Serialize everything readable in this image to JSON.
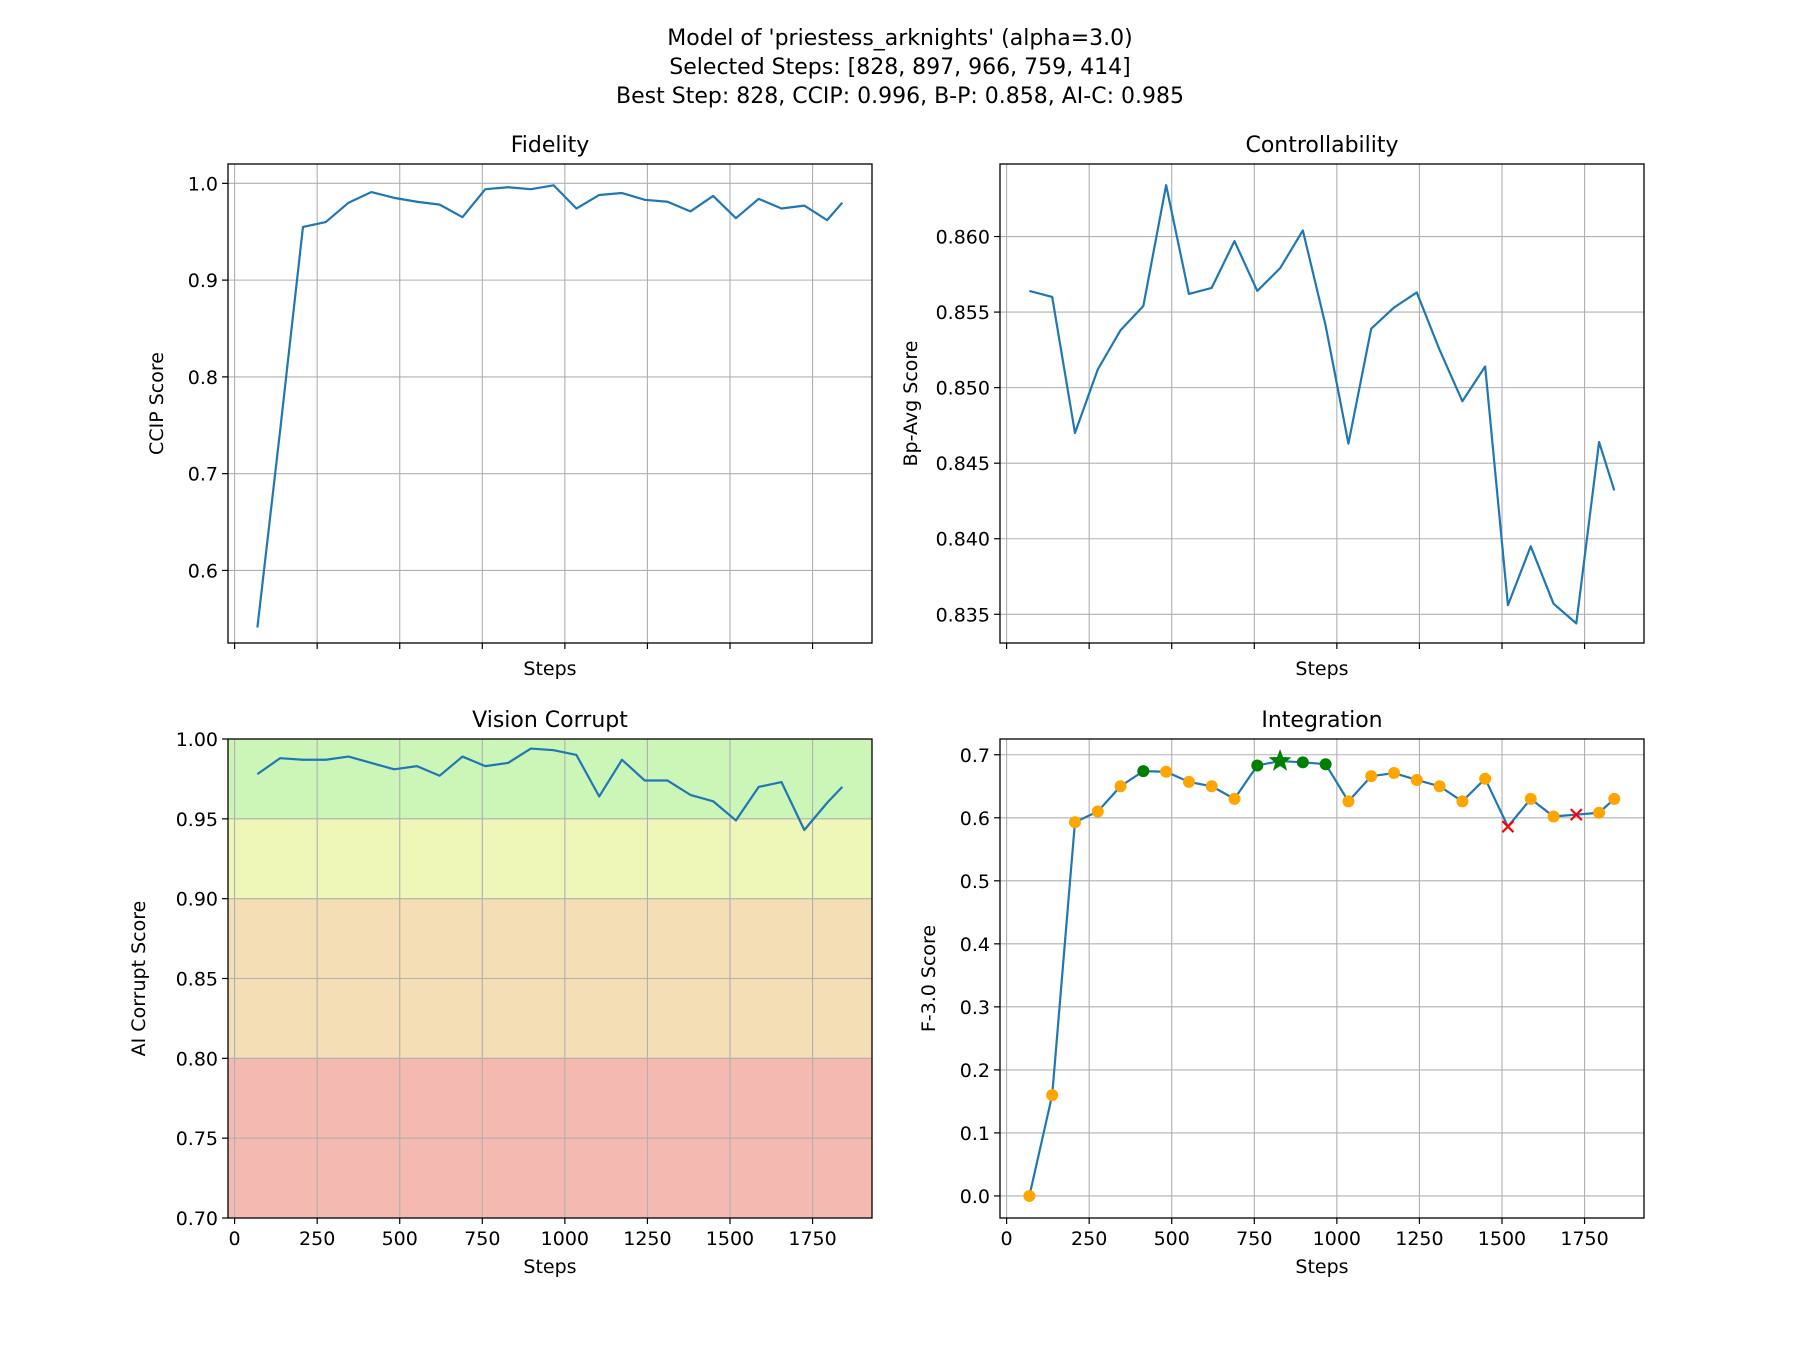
{
  "suptitle": [
    "Model of 'priestess_arknights' (alpha=3.0)",
    "Selected Steps: [828, 897, 966, 759, 414]",
    "Best Step: 828, CCIP: 0.996, B-P: 0.858, AI-C: 0.985"
  ],
  "colors": {
    "line": "#1f77b4",
    "grid": "#b0b0b0",
    "point": "#ffa500",
    "selected": "#008000",
    "worst": "#ff0000",
    "band_green": "#ccf5b8",
    "band_yellow": "#eef6b8",
    "band_orange": "#f3deb5",
    "band_red": "#f4b9b1"
  },
  "chart_data": [
    {
      "type": "line",
      "title": "Fidelity",
      "xlabel": "Steps",
      "ylabel": "CCIP Score",
      "xlim": [
        -20,
        1930
      ],
      "ylim": [
        0.525,
        1.02
      ],
      "xticks": [
        0,
        250,
        500,
        750,
        1000,
        1250,
        1500,
        1750
      ],
      "xtick_labels_visible": false,
      "yticks": [
        0.6,
        0.7,
        0.8,
        0.9,
        1.0
      ],
      "ytick_labels": [
        "0.6",
        "0.7",
        "0.8",
        "0.9",
        "1.0"
      ],
      "grid": true,
      "x": [
        69,
        138,
        207,
        276,
        345,
        414,
        483,
        552,
        621,
        690,
        759,
        828,
        897,
        966,
        1035,
        1104,
        1173,
        1242,
        1311,
        1380,
        1449,
        1518,
        1587,
        1656,
        1725,
        1794,
        1840
      ],
      "series": [
        {
          "values": [
            0.541,
            0.745,
            0.955,
            0.96,
            0.98,
            0.991,
            0.985,
            0.981,
            0.978,
            0.965,
            0.994,
            0.996,
            0.994,
            0.998,
            0.974,
            0.988,
            0.99,
            0.983,
            0.981,
            0.971,
            0.987,
            0.964,
            0.984,
            0.974,
            0.977,
            0.962,
            0.98
          ]
        }
      ]
    },
    {
      "type": "line",
      "title": "Controllability",
      "xlabel": "Steps",
      "ylabel": "Bp-Avg Score",
      "xlim": [
        -20,
        1930
      ],
      "ylim": [
        0.8331,
        0.8648
      ],
      "xticks": [
        0,
        250,
        500,
        750,
        1000,
        1250,
        1500,
        1750
      ],
      "xtick_labels_visible": false,
      "yticks": [
        0.835,
        0.84,
        0.845,
        0.85,
        0.855,
        0.86
      ],
      "ytick_labels": [
        "0.835",
        "0.840",
        "0.845",
        "0.850",
        "0.855",
        "0.860"
      ],
      "grid": true,
      "x": [
        69,
        138,
        207,
        276,
        345,
        414,
        483,
        552,
        621,
        690,
        759,
        828,
        897,
        966,
        1035,
        1104,
        1173,
        1242,
        1311,
        1380,
        1449,
        1518,
        1587,
        1656,
        1725,
        1794,
        1840
      ],
      "series": [
        {
          "values": [
            0.8564,
            0.856,
            0.847,
            0.8512,
            0.8538,
            0.8554,
            0.8634,
            0.8562,
            0.8566,
            0.8597,
            0.8564,
            0.8579,
            0.8604,
            0.8541,
            0.8463,
            0.8539,
            0.8553,
            0.8563,
            0.8525,
            0.8491,
            0.8514,
            0.8356,
            0.8395,
            0.8357,
            0.8344,
            0.8464,
            0.8432
          ]
        }
      ]
    },
    {
      "type": "line",
      "title": "Vision Corrupt",
      "xlabel": "Steps",
      "ylabel": "AI Corrupt Score",
      "xlim": [
        -20,
        1930
      ],
      "ylim": [
        0.7,
        1.0
      ],
      "xticks": [
        0,
        250,
        500,
        750,
        1000,
        1250,
        1500,
        1750
      ],
      "xtick_labels": [
        "0",
        "250",
        "500",
        "750",
        "1000",
        "1250",
        "1500",
        "1750"
      ],
      "yticks": [
        0.7,
        0.75,
        0.8,
        0.85,
        0.9,
        0.95,
        1.0
      ],
      "ytick_labels": [
        "0.70",
        "0.75",
        "0.80",
        "0.85",
        "0.90",
        "0.95",
        "1.00"
      ],
      "grid": true,
      "bands": [
        {
          "from": 0.95,
          "to": 1.0,
          "color": "band_green"
        },
        {
          "from": 0.9,
          "to": 0.95,
          "color": "band_yellow"
        },
        {
          "from": 0.8,
          "to": 0.9,
          "color": "band_orange"
        },
        {
          "from": 0.7,
          "to": 0.8,
          "color": "band_red"
        }
      ],
      "x": [
        69,
        138,
        207,
        276,
        345,
        414,
        483,
        552,
        621,
        690,
        759,
        828,
        897,
        966,
        1035,
        1104,
        1173,
        1242,
        1311,
        1380,
        1449,
        1518,
        1587,
        1656,
        1725,
        1794,
        1840
      ],
      "series": [
        {
          "values": [
            0.978,
            0.988,
            0.987,
            0.987,
            0.989,
            0.985,
            0.981,
            0.983,
            0.977,
            0.989,
            0.983,
            0.985,
            0.994,
            0.993,
            0.99,
            0.964,
            0.987,
            0.974,
            0.974,
            0.965,
            0.961,
            0.949,
            0.97,
            0.973,
            0.943,
            0.96,
            0.97
          ]
        }
      ]
    },
    {
      "type": "line",
      "title": "Integration",
      "xlabel": "Steps",
      "ylabel": "F-3.0 Score",
      "xlim": [
        -20,
        1930
      ],
      "ylim": [
        -0.035,
        0.725
      ],
      "xticks": [
        0,
        250,
        500,
        750,
        1000,
        1250,
        1500,
        1750
      ],
      "xtick_labels": [
        "0",
        "250",
        "500",
        "750",
        "1000",
        "1250",
        "1500",
        "1750"
      ],
      "yticks": [
        0.0,
        0.1,
        0.2,
        0.3,
        0.4,
        0.5,
        0.6,
        0.7
      ],
      "ytick_labels": [
        "0.0",
        "0.1",
        "0.2",
        "0.3",
        "0.4",
        "0.5",
        "0.6",
        "0.7"
      ],
      "grid": true,
      "x": [
        69,
        138,
        207,
        276,
        345,
        414,
        483,
        552,
        621,
        690,
        759,
        828,
        897,
        966,
        1035,
        1104,
        1173,
        1242,
        1311,
        1380,
        1449,
        1518,
        1587,
        1656,
        1725,
        1794,
        1840
      ],
      "series": [
        {
          "values": [
            0.0,
            0.16,
            0.593,
            0.61,
            0.65,
            0.674,
            0.673,
            0.657,
            0.65,
            0.63,
            0.683,
            0.69,
            0.688,
            0.685,
            0.626,
            0.666,
            0.671,
            0.66,
            0.65,
            0.626,
            0.662,
            0.586,
            0.63,
            0.602,
            0.605,
            0.608,
            0.63
          ]
        }
      ],
      "marker_kinds": [
        "normal",
        "normal",
        "normal",
        "normal",
        "normal",
        "selected",
        "normal",
        "normal",
        "normal",
        "normal",
        "selected",
        "best",
        "selected",
        "selected",
        "normal",
        "normal",
        "normal",
        "normal",
        "normal",
        "normal",
        "normal",
        "worst",
        "normal",
        "normal",
        "worst",
        "normal",
        "normal"
      ]
    }
  ]
}
